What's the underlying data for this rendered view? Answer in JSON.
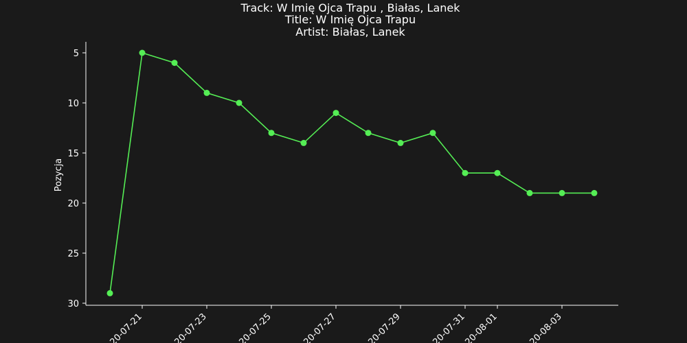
{
  "chart_data": {
    "type": "line",
    "title_lines": [
      "Track:  W Imię Ojca Trapu , Białas, Lanek",
      "Title:  W Imię Ojca Trapu",
      "Artist:  Białas, Lanek"
    ],
    "xlabel": "",
    "ylabel": "Pozycja",
    "y_inverted": true,
    "ylim": [
      30,
      4
    ],
    "yticks": [
      5,
      10,
      15,
      20,
      25,
      30
    ],
    "xticks": [
      "2020-07-21",
      "2020-07-23",
      "2020-07-25",
      "2020-07-27",
      "2020-07-29",
      "2020-07-31",
      "2020-08-01",
      "2020-08-03"
    ],
    "xtick_labels": [
      "20-07-21",
      "20-07-23",
      "20-07-25",
      "20-07-27",
      "20-07-29",
      "20-07-31",
      "20-08-01",
      "20-08-03"
    ],
    "grid": false,
    "line_color": "#55ee55",
    "marker": "circle",
    "series": [
      {
        "x": [
          "2020-07-20",
          "2020-07-21",
          "2020-07-22",
          "2020-07-23",
          "2020-07-24",
          "2020-07-25",
          "2020-07-26",
          "2020-07-27",
          "2020-07-28",
          "2020-07-29",
          "2020-07-30",
          "2020-07-31",
          "2020-08-01",
          "2020-08-02",
          "2020-08-03",
          "2020-08-04"
        ],
        "values": [
          29,
          5,
          6,
          9,
          10,
          13,
          14,
          11,
          13,
          14,
          13,
          17,
          17,
          19,
          19,
          19
        ]
      }
    ]
  }
}
